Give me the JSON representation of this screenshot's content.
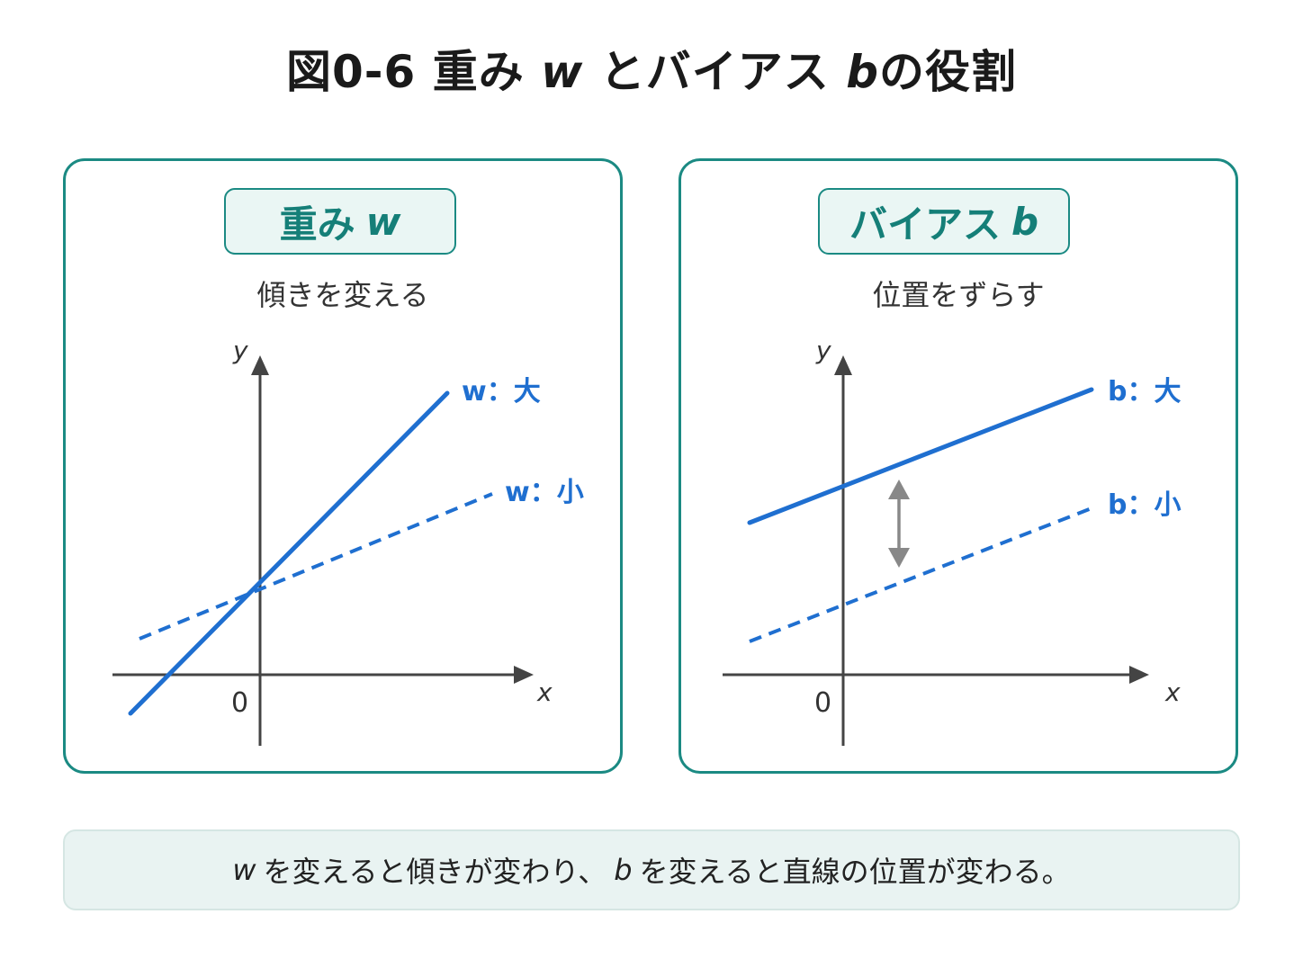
{
  "title": {
    "prefix": "図0-6 重み",
    "w": "w",
    "middle": "とバイアス",
    "b": "b",
    "suffix": "の役割"
  },
  "panels": [
    {
      "badge_text": "重み",
      "badge_var": "w",
      "subtitle": "傾きを変える",
      "axis_x": "x",
      "axis_y": "y",
      "origin": "0",
      "lines": [
        {
          "label": "w：大",
          "style": "solid",
          "meaning": "steep slope"
        },
        {
          "label": "w：小",
          "style": "dashed",
          "meaning": "gentle slope"
        }
      ]
    },
    {
      "badge_text": "バイアス",
      "badge_var": "b",
      "subtitle": "位置をずらす",
      "axis_x": "x",
      "axis_y": "y",
      "origin": "0",
      "lines": [
        {
          "label": "b：大",
          "style": "solid",
          "meaning": "higher intercept"
        },
        {
          "label": "b：小",
          "style": "dashed",
          "meaning": "lower intercept"
        }
      ],
      "shift_arrow": "double-headed vertical arrow"
    }
  ],
  "summary": {
    "w": "w",
    "part1": "を変えると傾きが変わり、",
    "b": "b",
    "part2": "を変えると直線の位置が変わる。"
  },
  "colors": {
    "accent": "#1b8a83",
    "line": "#1f6fd0",
    "axis": "#444444",
    "arrow": "#888888"
  }
}
